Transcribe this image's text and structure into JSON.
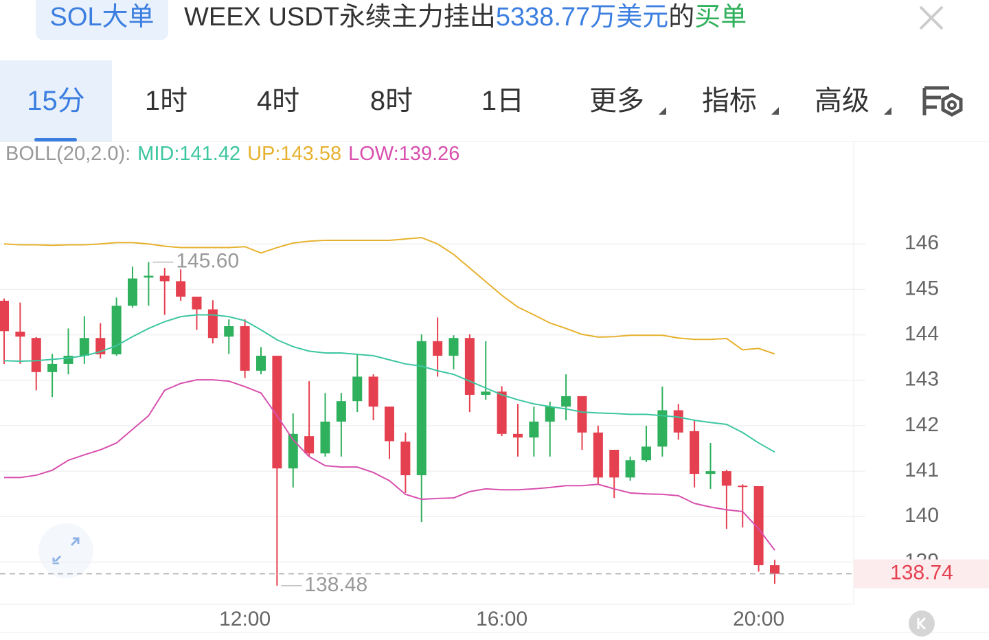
{
  "header": {
    "tag": "SOL大单",
    "parts": [
      "WEEX USDT永续主力挂出",
      "5338.77万美元",
      "的",
      "买单"
    ]
  },
  "tabs": [
    "15分",
    "1时",
    "4时",
    "8时",
    "1日",
    "更多",
    "指标",
    "高级"
  ],
  "selected_tab": 0,
  "chart_data": {
    "type": "candlestick",
    "indicator_label": "BOLL(20,2.0):",
    "categories": [
      null,
      null,
      null,
      null,
      null,
      null,
      null,
      null,
      null,
      null,
      null,
      null,
      null,
      null,
      null,
      "12:00",
      null,
      null,
      null,
      null,
      null,
      null,
      null,
      null,
      null,
      null,
      null,
      null,
      null,
      null,
      null,
      "16:00",
      null,
      null,
      null,
      null,
      null,
      null,
      null,
      null,
      null,
      null,
      null,
      null,
      null,
      null,
      null,
      "20:00",
      null
    ],
    "open": [
      144.75,
      144.07,
      143.93,
      143.18,
      143.36,
      143.54,
      143.93,
      143.57,
      144.64,
      145.26,
      145.3,
      145.18,
      144.84,
      144.56,
      143.96,
      144.19,
      143.21,
      143.54,
      141.06,
      141.77,
      141.39,
      142.09,
      142.54,
      143.08,
      142.42,
      141.65,
      140.91,
      143.86,
      143.54,
      143.93,
      142.68,
      142.75,
      141.82,
      141.74,
      142.09,
      142.42,
      142.65,
      141.85,
      141.47,
      140.86,
      141.24,
      141.54,
      142.34,
      141.88,
      140.94,
      141.0,
      140.68,
      140.67,
      138.93
    ],
    "high": [
      144.8,
      144.71,
      143.95,
      143.58,
      144.14,
      144.41,
      144.26,
      144.82,
      145.5,
      145.6,
      145.47,
      145.44,
      144.84,
      144.76,
      144.34,
      144.34,
      143.73,
      143.54,
      142.27,
      142.98,
      142.72,
      142.72,
      143.58,
      143.13,
      142.42,
      141.85,
      144.01,
      144.38,
      143.99,
      144.01,
      143.86,
      142.87,
      142.48,
      142.42,
      142.53,
      143.13,
      142.65,
      142.0,
      141.47,
      141.32,
      142.0,
      142.86,
      142.48,
      142.12,
      141.62,
      141.03,
      140.71,
      140.67,
      139.05
    ],
    "low": [
      143.36,
      143.36,
      142.78,
      142.63,
      143.13,
      143.36,
      143.48,
      143.54,
      144.6,
      144.64,
      144.44,
      144.75,
      144.11,
      143.81,
      143.58,
      143.05,
      143.13,
      138.48,
      140.64,
      141.32,
      141.32,
      141.32,
      142.3,
      142.12,
      141.27,
      140.52,
      139.88,
      143.08,
      143.24,
      142.3,
      142.57,
      141.77,
      141.32,
      141.32,
      141.32,
      142.12,
      141.47,
      140.71,
      140.41,
      140.79,
      141.2,
      141.32,
      141.69,
      140.64,
      140.61,
      139.73,
      139.76,
      138.79,
      138.52
    ],
    "close": [
      144.08,
      143.96,
      143.18,
      143.36,
      143.54,
      143.93,
      143.57,
      144.64,
      145.24,
      145.3,
      145.18,
      144.84,
      144.56,
      143.93,
      144.19,
      143.21,
      143.54,
      141.06,
      141.82,
      141.39,
      142.09,
      142.54,
      143.08,
      142.42,
      141.66,
      140.91,
      143.86,
      143.54,
      143.93,
      142.68,
      142.75,
      141.82,
      141.74,
      142.09,
      142.42,
      142.65,
      141.85,
      140.86,
      140.86,
      141.24,
      141.54,
      142.34,
      141.85,
      140.94,
      141.0,
      140.68,
      140.67,
      138.93,
      138.74
    ],
    "up_color": "#2fb05c",
    "down_color": "#e5404f",
    "lines": [
      {
        "label": "MID:141.42",
        "color": "#3cc6a0",
        "values": [
          143.43,
          143.42,
          143.43,
          143.46,
          143.49,
          143.54,
          143.63,
          143.76,
          143.96,
          144.14,
          144.29,
          144.4,
          144.44,
          144.44,
          144.4,
          144.31,
          144.11,
          143.89,
          143.74,
          143.64,
          143.6,
          143.6,
          143.57,
          143.54,
          143.45,
          143.36,
          143.31,
          143.21,
          143.13,
          142.98,
          142.83,
          142.68,
          142.57,
          142.48,
          142.42,
          142.37,
          142.3,
          142.28,
          142.27,
          142.25,
          142.25,
          142.22,
          142.19,
          142.12,
          142.07,
          142.03,
          141.85,
          141.62,
          141.42
        ]
      },
      {
        "label": "UP:143.58",
        "color": "#e6b12e",
        "values": [
          146.0,
          145.98,
          145.98,
          145.97,
          145.98,
          145.98,
          146.0,
          146.03,
          146.03,
          146.0,
          145.95,
          145.92,
          145.92,
          145.92,
          145.92,
          145.94,
          145.8,
          145.92,
          146.02,
          146.06,
          146.08,
          146.08,
          146.08,
          146.08,
          146.08,
          146.11,
          146.14,
          146.0,
          145.77,
          145.47,
          145.17,
          144.87,
          144.61,
          144.44,
          144.26,
          144.14,
          144.01,
          143.95,
          143.96,
          143.99,
          143.99,
          143.99,
          143.93,
          143.9,
          143.9,
          143.92,
          143.67,
          143.7,
          143.58
        ]
      },
      {
        "label": "LOW:139.26",
        "color": "#d84fae",
        "values": [
          140.86,
          140.86,
          140.91,
          141.02,
          141.24,
          141.36,
          141.47,
          141.62,
          141.92,
          142.22,
          142.78,
          142.93,
          143.01,
          143.01,
          142.98,
          142.86,
          142.72,
          142.22,
          141.69,
          141.32,
          141.12,
          141.09,
          141.09,
          140.97,
          140.79,
          140.49,
          140.38,
          140.4,
          140.41,
          140.55,
          140.61,
          140.59,
          140.59,
          140.61,
          140.64,
          140.68,
          140.68,
          140.71,
          140.61,
          140.52,
          140.5,
          140.49,
          140.46,
          140.29,
          140.21,
          140.15,
          140.11,
          139.73,
          139.26
        ]
      }
    ],
    "ylim": [
      138.07,
      148.24
    ],
    "yticks": [
      139,
      140,
      141,
      142,
      143,
      144,
      145,
      146
    ],
    "grid": true,
    "last_price": 138.74,
    "high_label": "145.60"
  }
}
